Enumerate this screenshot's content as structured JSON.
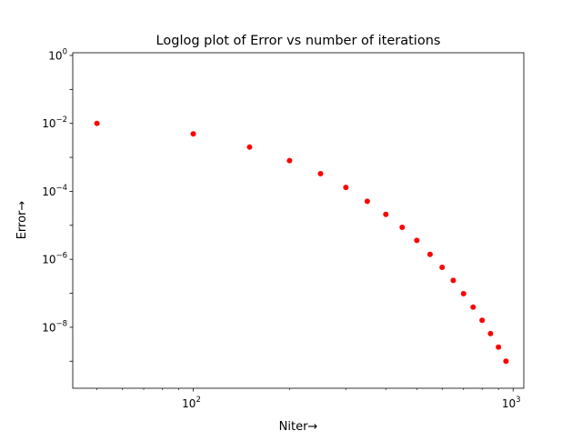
{
  "chart_data": {
    "type": "scatter",
    "title": "Loglog plot of Error vs number of iterations",
    "xlabel": "Niter→",
    "ylabel": "Error→",
    "xscale": "log",
    "yscale": "log",
    "xlim": [
      42,
      1080
    ],
    "ylim": [
      1.6e-10,
      1.2
    ],
    "grid": false,
    "marker_color": "#ff0000",
    "x_ticks": [
      {
        "value": 100,
        "base": "10",
        "exp": "2"
      },
      {
        "value": 1000,
        "base": "10",
        "exp": "3"
      }
    ],
    "y_ticks": [
      {
        "value": 1,
        "base": "10",
        "exp": "0"
      },
      {
        "value": 0.01,
        "base": "10",
        "exp": "−2"
      },
      {
        "value": 0.0001,
        "base": "10",
        "exp": "−4"
      },
      {
        "value": 1e-06,
        "base": "10",
        "exp": "−6"
      },
      {
        "value": 1e-08,
        "base": "10",
        "exp": "−8"
      }
    ],
    "x": [
      50,
      100,
      150,
      200,
      250,
      300,
      350,
      400,
      450,
      500,
      550,
      600,
      650,
      700,
      750,
      800,
      850,
      900,
      950
    ],
    "y": [
      0.01,
      0.0049,
      0.002,
      0.0008,
      0.00033,
      0.00013,
      5.1e-05,
      2.1e-05,
      8.7e-06,
      3.6e-06,
      1.4e-06,
      5.8e-07,
      2.4e-07,
      9.7e-08,
      3.9e-08,
      1.6e-08,
      6.5e-09,
      2.6e-09,
      1e-09
    ]
  }
}
